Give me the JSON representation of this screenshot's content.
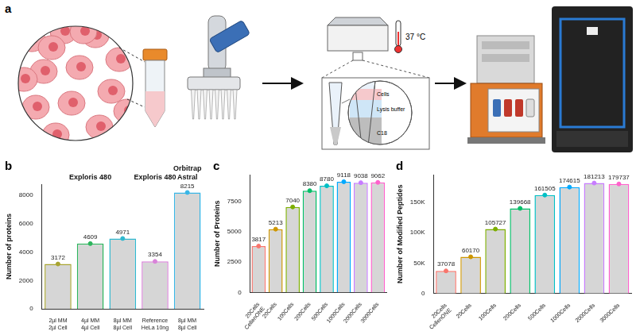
{
  "diagram": {
    "panel": "a",
    "temperature": "37 °C",
    "inset_labels": [
      "Cells",
      "Lysis buffer",
      "C18"
    ]
  },
  "chart_data": [
    {
      "type": "bar",
      "panel": "b",
      "y_label": "Number of proteins",
      "categories": [
        [
          "2µl MM",
          "2µl Cell"
        ],
        [
          "4µl MM",
          "4µl Cell"
        ],
        [
          "8µl MM",
          "8µl Cell"
        ],
        [
          "Reference",
          "HeLa 10ng"
        ],
        [
          "8µl MM",
          "8µl Cell"
        ]
      ],
      "values": [
        3172,
        4609,
        4971,
        3354,
        8215
      ],
      "colors": [
        "#a8a431",
        "#2db55d",
        "#2fb8cf",
        "#d984d9",
        "#38b6e6"
      ],
      "ylim": [
        0,
        8800
      ],
      "yticks": [
        0,
        2000,
        4000,
        6000,
        8000
      ],
      "grid": false,
      "data_labels": true,
      "marker": "circle",
      "annotations": [
        {
          "text": [
            "Exploris 480"
          ],
          "from": 0,
          "to": 2
        },
        {
          "text": [
            "Exploris 480"
          ],
          "from": 3,
          "to": 3
        },
        {
          "text": [
            "Orbitrap",
            "Astral"
          ],
          "from": 4,
          "to": 4
        }
      ]
    },
    {
      "type": "bar",
      "panel": "c",
      "y_label": "Number of Proteins",
      "categories": [
        [
          "20Cells",
          "CellenONE"
        ],
        "20Cells",
        "100Cells",
        "200Cells",
        "500Cells",
        "1000Cells",
        "2000Cells",
        "3000Cells"
      ],
      "values": [
        3817,
        5213,
        7040,
        8380,
        8780,
        9118,
        9038,
        9062
      ],
      "colors": [
        "#F8766D",
        "#CD9600",
        "#7CAE00",
        "#00BE67",
        "#00BFC4",
        "#00A9FF",
        "#C77CFF",
        "#FF61CC"
      ],
      "ylim": [
        0,
        9700
      ],
      "yticks": [
        0,
        2500,
        5000,
        7500
      ],
      "grid": false,
      "data_labels": true,
      "marker": "circle"
    },
    {
      "type": "bar",
      "panel": "d",
      "y_label": "Number of Modified Peptides",
      "categories": [
        [
          "20Cells",
          "CellenONE"
        ],
        "20Cells",
        "100Cells",
        "200Cells",
        "500Cells",
        "1000Cells",
        "2000Cells",
        "3000Cells"
      ],
      "values": [
        37078,
        60170,
        105727,
        139668,
        161505,
        174615,
        181213,
        179737
      ],
      "colors": [
        "#F8766D",
        "#CD9600",
        "#7CAE00",
        "#00BE67",
        "#00BFC4",
        "#00A9FF",
        "#C77CFF",
        "#FF61CC"
      ],
      "ylim": [
        0,
        195000
      ],
      "yticks": [
        0,
        {
          "value": 50000,
          "label": "50K"
        },
        {
          "value": 100000,
          "label": "100K"
        },
        {
          "value": 150000,
          "label": "150K"
        }
      ],
      "grid": false,
      "data_labels": true,
      "marker": "circle"
    }
  ]
}
